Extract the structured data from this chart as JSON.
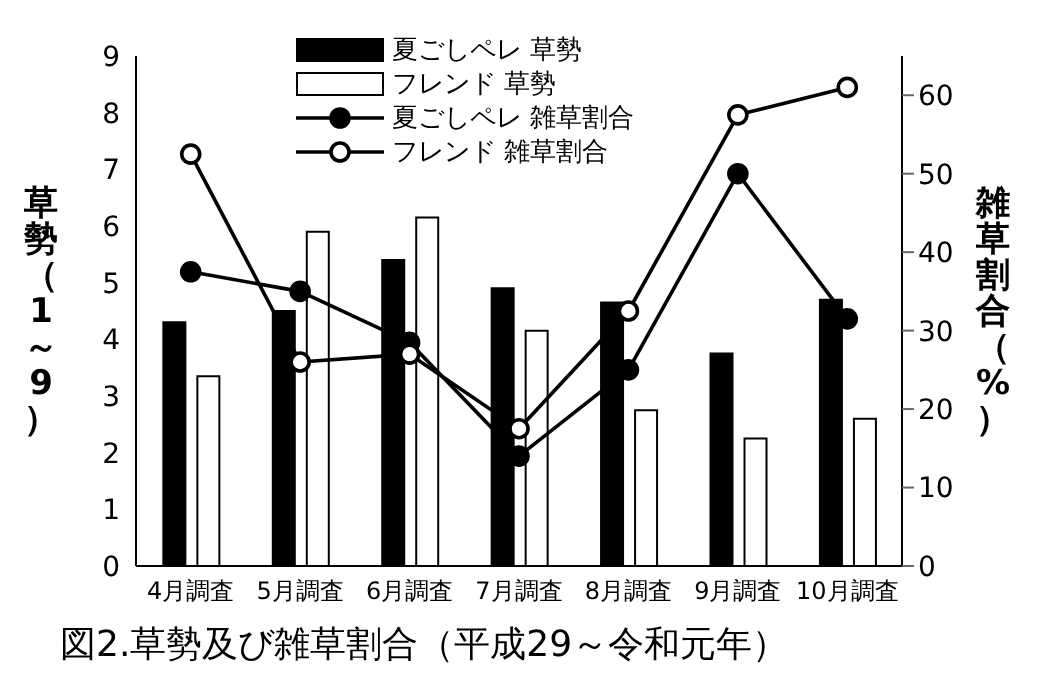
{
  "chart_data": {
    "type": "bar",
    "title": "図2.草勢及び雑草割合（平成29～令和元年）",
    "ylabel": "草勢（1～9）",
    "y2label": "雑草割合（%）",
    "categories": [
      "4月調査",
      "5月調査",
      "6月調査",
      "7月調査",
      "8月調査",
      "9月調査",
      "10月調査"
    ],
    "series": [
      {
        "name": "夏ごしペレ 草勢",
        "color": "#000000",
        "values": [
          4.3,
          4.5,
          5.4,
          4.9,
          4.65,
          3.75,
          4.7
        ]
      },
      {
        "name": "フレンド 草勢",
        "color": "#ffffff",
        "values": [
          3.35,
          5.9,
          6.15,
          4.15,
          2.75,
          2.25,
          2.6
        ]
      },
      {
        "name": "夏ごしペレ 雑草割合",
        "type": "line",
        "axis": "y2",
        "color": "#000000",
        "marker": "circle",
        "values": [
          37.5,
          35,
          28.5,
          14,
          25,
          50,
          31.5
        ]
      },
      {
        "name": "フレンド 雑草割合",
        "type": "line",
        "axis": "y2",
        "color": "#ffffff",
        "marker": "circle",
        "values": [
          52.5,
          26,
          27,
          17.5,
          32.5,
          57.5,
          61
        ]
      }
    ],
    "ylim": [
      0,
      9
    ],
    "yticks": [
      0,
      1,
      2,
      3,
      4,
      5,
      6,
      7,
      8,
      9
    ],
    "y2lim": [
      0,
      65
    ],
    "y2ticks": [
      0,
      10,
      20,
      30,
      40,
      50,
      60
    ],
    "grid": false,
    "legend": "top"
  }
}
